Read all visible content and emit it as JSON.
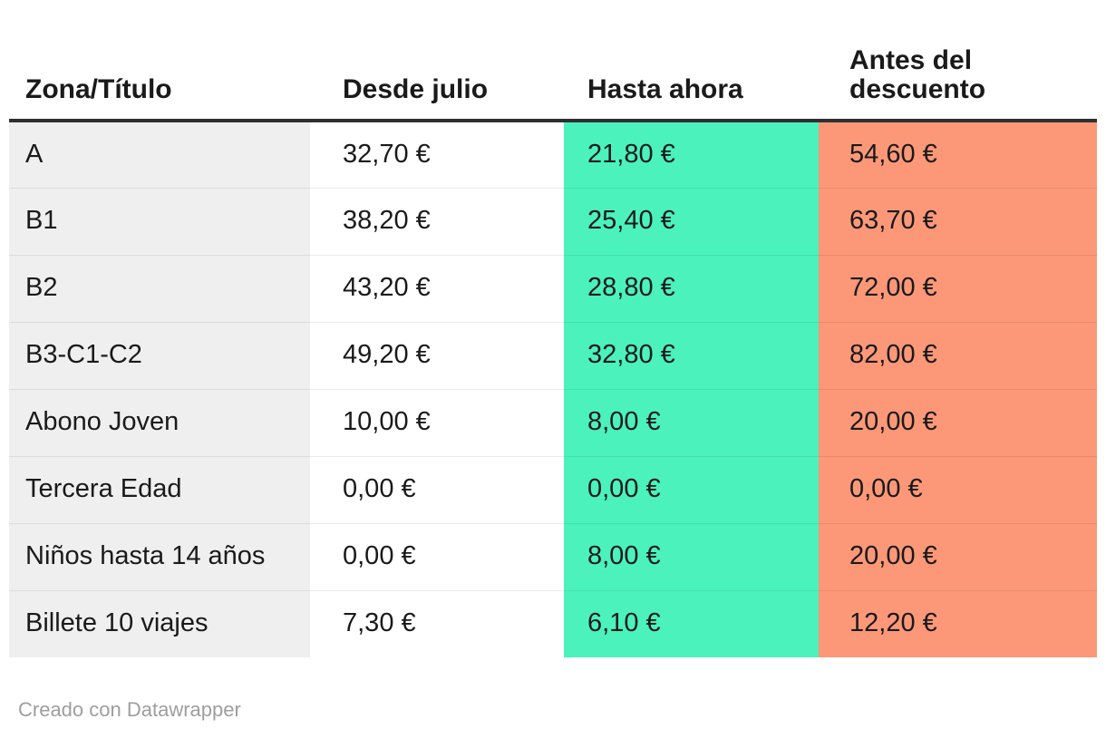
{
  "table": {
    "columns": [
      {
        "label": "Zona/Título"
      },
      {
        "label": "Desde julio"
      },
      {
        "label": "Hasta ahora"
      },
      {
        "label": "Antes del\ndescuento"
      }
    ],
    "rows": [
      {
        "cells": [
          "A",
          "32,70 €",
          "21,80 €",
          "54,60 €"
        ]
      },
      {
        "cells": [
          "B1",
          "38,20 €",
          "25,40 €",
          "63,70 €"
        ]
      },
      {
        "cells": [
          "B2",
          "43,20 €",
          "28,80 €",
          "72,00 €"
        ]
      },
      {
        "cells": [
          "B3-C1-C2",
          "49,20 €",
          "32,80 €",
          "82,00 €"
        ]
      },
      {
        "cells": [
          "Abono Joven",
          "10,00 €",
          "8,00 €",
          "20,00 €"
        ]
      },
      {
        "cells": [
          "Tercera Edad",
          "0,00 €",
          "0,00 €",
          "0,00 €"
        ]
      },
      {
        "cells": [
          "Niños hasta 14 años",
          "0,00 €",
          "8,00 €",
          "20,00 €"
        ]
      },
      {
        "cells": [
          "Billete 10 viajes",
          "7,30 €",
          "6,10 €",
          "12,20 €"
        ]
      }
    ]
  },
  "footer": {
    "credit": "Creado con Datawrapper"
  },
  "colors": {
    "highlight_green": "#4BF2BC",
    "highlight_salmon": "#FC9878",
    "label_column_bg": "#EFEFEF",
    "header_rule": "#2F2F2F",
    "text": "#1A1A1A",
    "credit_text": "#9E9E9E"
  },
  "chart_data": {
    "type": "table",
    "title": "",
    "columns": [
      "Zona/Título",
      "Desde julio",
      "Hasta ahora",
      "Antes del descuento"
    ],
    "rows": [
      [
        "A",
        "32,70 €",
        "21,80 €",
        "54,60 €"
      ],
      [
        "B1",
        "38,20 €",
        "25,40 €",
        "63,70 €"
      ],
      [
        "B2",
        "43,20 €",
        "28,80 €",
        "72,00 €"
      ],
      [
        "B3-C1-C2",
        "49,20 €",
        "32,80 €",
        "82,00 €"
      ],
      [
        "Abono Joven",
        "10,00 €",
        "8,00 €",
        "20,00 €"
      ],
      [
        "Tercera Edad",
        "0,00 €",
        "0,00 €",
        "0,00 €"
      ],
      [
        "Niños hasta 14 años",
        "0,00 €",
        "8,00 €",
        "20,00 €"
      ],
      [
        "Billete 10 viajes",
        "7,30 €",
        "6,10 €",
        "12,20 €"
      ]
    ],
    "series": [
      {
        "name": "Desde julio",
        "values": [
          32.7,
          38.2,
          43.2,
          49.2,
          10.0,
          0.0,
          0.0,
          7.3
        ]
      },
      {
        "name": "Hasta ahora",
        "values": [
          21.8,
          25.4,
          28.8,
          32.8,
          8.0,
          0.0,
          8.0,
          6.1
        ]
      },
      {
        "name": "Antes del descuento",
        "values": [
          54.6,
          63.7,
          72.0,
          82.0,
          20.0,
          0.0,
          20.0,
          12.2
        ]
      }
    ],
    "categories": [
      "A",
      "B1",
      "B2",
      "B3-C1-C2",
      "Abono Joven",
      "Tercera Edad",
      "Niños hasta 14 años",
      "Billete 10 viajes"
    ],
    "unit": "EUR",
    "column_highlights": {
      "Hasta ahora": "green",
      "Antes del descuento": "salmon"
    }
  }
}
